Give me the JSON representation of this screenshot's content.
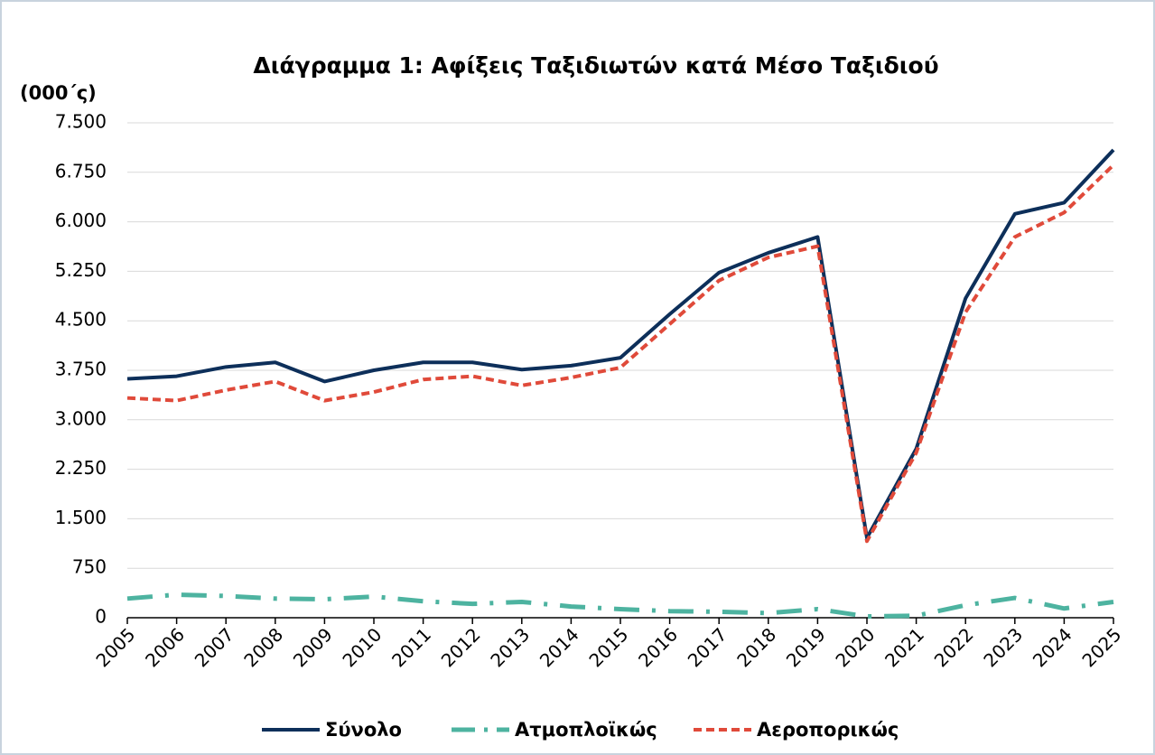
{
  "chart_data": {
    "type": "line",
    "title": "Διάγραμμα 1: Αφίξεις Ταξιδιωτών κατά Μέσο Ταξιδιού",
    "y_label": "(000΄ς)",
    "categories": [
      "2005",
      "2006",
      "2007",
      "2008",
      "2009",
      "2010",
      "2011",
      "2012",
      "2013",
      "2014",
      "2015",
      "2016",
      "2017",
      "2018",
      "2019",
      "2020",
      "2021",
      "2022",
      "2023",
      "2024",
      "2025"
    ],
    "series": [
      {
        "name": "Σύνολο",
        "color": "#0d2f5a",
        "dash": "solid",
        "values": [
          3620,
          3660,
          3800,
          3870,
          3580,
          3750,
          3870,
          3870,
          3760,
          3820,
          3940,
          4600,
          5230,
          5530,
          5770,
          1210,
          2560,
          4840,
          6120,
          6290,
          7090
        ]
      },
      {
        "name": "Ατμοπλοϊκώς",
        "color": "#4db3a0",
        "dash": "dashdot",
        "values": [
          290,
          350,
          330,
          290,
          280,
          320,
          250,
          210,
          240,
          170,
          130,
          100,
          90,
          70,
          130,
          20,
          30,
          190,
          300,
          140,
          240
        ]
      },
      {
        "name": "Αεροπορικώς",
        "color": "#e04a3a",
        "dash": "dashed",
        "values": [
          3330,
          3290,
          3450,
          3580,
          3290,
          3420,
          3610,
          3660,
          3520,
          3640,
          3790,
          4450,
          5110,
          5460,
          5630,
          1160,
          2500,
          4630,
          5770,
          6140,
          6860
        ]
      }
    ],
    "ylim": [
      0,
      7500
    ],
    "yticks": [
      0,
      750,
      {
        "value": 1500,
        "label": "1.500"
      },
      {
        "value": 2250,
        "label": "2.250"
      },
      {
        "value": 3000,
        "label": "3.000"
      },
      {
        "value": 3750,
        "label": "3.750"
      },
      {
        "value": 4500,
        "label": "4.500"
      },
      {
        "value": 5250,
        "label": "5.250"
      },
      {
        "value": 6000,
        "label": "6.000"
      },
      {
        "value": 6750,
        "label": "6.750"
      },
      {
        "value": 7500,
        "label": "7.500"
      }
    ],
    "grid": true,
    "legend": "bottom"
  }
}
